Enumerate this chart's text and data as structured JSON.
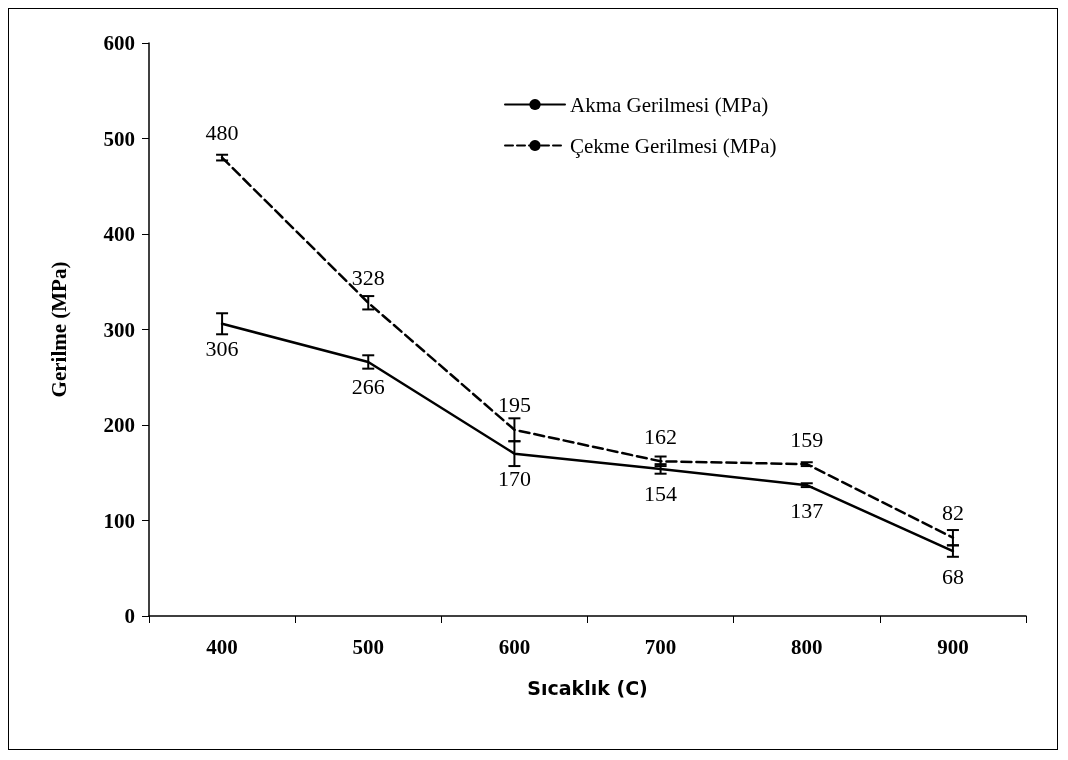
{
  "chart_data": {
    "type": "line",
    "xlabel": "Sıcaklık (C)",
    "ylabel": "Gerilme (MPa)",
    "categories": [
      "400",
      "500",
      "600",
      "700",
      "800",
      "900"
    ],
    "ylim": [
      0,
      600
    ],
    "yticks": [
      0,
      100,
      200,
      300,
      400,
      500,
      600
    ],
    "grid": false,
    "legend": "top right",
    "marker": "none",
    "data_labels": true,
    "series": [
      {
        "name": "Akma Gerilmesi (MPa)",
        "color": "#000000",
        "line_style": "solid",
        "values": [
          306,
          266,
          170,
          154,
          137,
          68
        ],
        "errors": [
          11,
          7,
          13,
          5,
          2,
          6
        ]
      },
      {
        "name": "Çekme Gerilmesi (MPa)",
        "color": "#000000",
        "line_style": "dashed",
        "values": [
          480,
          328,
          195,
          162,
          159,
          82
        ],
        "errors": [
          3,
          7,
          12,
          5,
          2,
          8
        ]
      }
    ]
  }
}
